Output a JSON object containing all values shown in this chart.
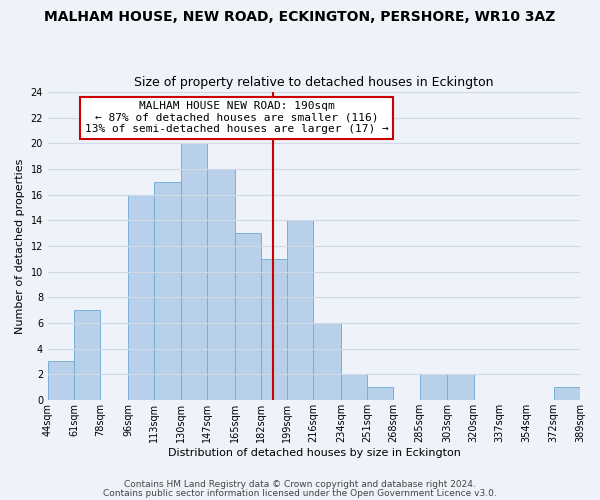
{
  "title": "MALHAM HOUSE, NEW ROAD, ECKINGTON, PERSHORE, WR10 3AZ",
  "subtitle": "Size of property relative to detached houses in Eckington",
  "xlabel": "Distribution of detached houses by size in Eckington",
  "ylabel": "Number of detached properties",
  "bins": [
    44,
    61,
    78,
    96,
    113,
    130,
    147,
    165,
    182,
    199,
    216,
    234,
    251,
    268,
    285,
    303,
    320,
    337,
    354,
    372,
    389
  ],
  "counts": [
    3,
    7,
    0,
    16,
    17,
    20,
    18,
    13,
    11,
    14,
    6,
    2,
    1,
    0,
    2,
    2,
    0,
    0,
    0,
    1
  ],
  "bar_color": "#b8d0ea",
  "bar_edge_color": "#7aafd4",
  "reference_line_x": 190,
  "reference_line_color": "#cc0000",
  "ylim": [
    0,
    24
  ],
  "yticks": [
    0,
    2,
    4,
    6,
    8,
    10,
    12,
    14,
    16,
    18,
    20,
    22,
    24
  ],
  "annotation_title": "MALHAM HOUSE NEW ROAD: 190sqm",
  "annotation_line1": "← 87% of detached houses are smaller (116)",
  "annotation_line2": "13% of semi-detached houses are larger (17) →",
  "annotation_box_color": "#ffffff",
  "annotation_box_edge": "#cc0000",
  "tick_labels": [
    "44sqm",
    "61sqm",
    "78sqm",
    "96sqm",
    "113sqm",
    "130sqm",
    "147sqm",
    "165sqm",
    "182sqm",
    "199sqm",
    "216sqm",
    "234sqm",
    "251sqm",
    "268sqm",
    "285sqm",
    "303sqm",
    "320sqm",
    "337sqm",
    "354sqm",
    "372sqm",
    "389sqm"
  ],
  "footer1": "Contains HM Land Registry data © Crown copyright and database right 2024.",
  "footer2": "Contains public sector information licensed under the Open Government Licence v3.0.",
  "background_color": "#eef2f9",
  "grid_color": "#d0d8e8",
  "title_fontsize": 10,
  "subtitle_fontsize": 9,
  "axis_label_fontsize": 8,
  "tick_fontsize": 7,
  "annotation_fontsize": 8,
  "footer_fontsize": 6.5
}
